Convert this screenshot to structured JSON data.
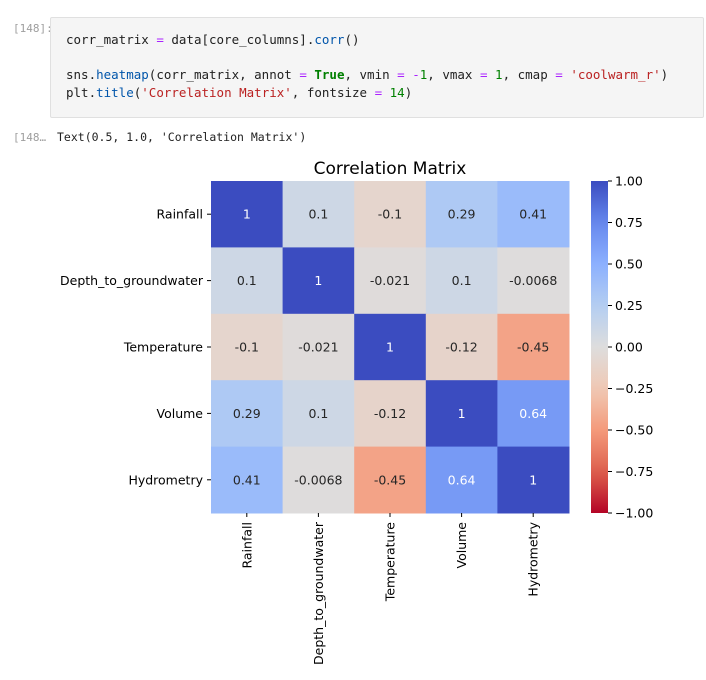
{
  "cells": {
    "input_prompt": "[148]:",
    "output_prompt": "[148…",
    "code_lines": [
      [
        {
          "t": "corr_matrix ",
          "c": ""
        },
        {
          "t": "=",
          "c": "op"
        },
        {
          "t": " data[core_columns].",
          "c": ""
        },
        {
          "t": "corr",
          "c": "fn"
        },
        {
          "t": "()",
          "c": ""
        }
      ],
      [
        {
          "t": "sns.",
          "c": ""
        },
        {
          "t": "heatmap",
          "c": "fn"
        },
        {
          "t": "(corr_matrix, annot ",
          "c": ""
        },
        {
          "t": "=",
          "c": "op"
        },
        {
          "t": " ",
          "c": ""
        },
        {
          "t": "True",
          "c": "kw"
        },
        {
          "t": ", vmin ",
          "c": ""
        },
        {
          "t": "=",
          "c": "op"
        },
        {
          "t": " ",
          "c": ""
        },
        {
          "t": "-",
          "c": "op"
        },
        {
          "t": "1",
          "c": "num"
        },
        {
          "t": ", vmax ",
          "c": ""
        },
        {
          "t": "=",
          "c": "op"
        },
        {
          "t": " ",
          "c": ""
        },
        {
          "t": "1",
          "c": "num"
        },
        {
          "t": ", cmap ",
          "c": ""
        },
        {
          "t": "=",
          "c": "op"
        },
        {
          "t": " ",
          "c": ""
        },
        {
          "t": "'coolwarm_r'",
          "c": "str"
        },
        {
          "t": ")",
          "c": ""
        }
      ],
      [
        {
          "t": "plt.",
          "c": ""
        },
        {
          "t": "title",
          "c": "fn"
        },
        {
          "t": "(",
          "c": ""
        },
        {
          "t": "'Correlation Matrix'",
          "c": "str"
        },
        {
          "t": ", fontsize ",
          "c": ""
        },
        {
          "t": "=",
          "c": "op"
        },
        {
          "t": " ",
          "c": ""
        },
        {
          "t": "14",
          "c": "num"
        },
        {
          "t": ")",
          "c": ""
        }
      ]
    ],
    "output_text": "Text(0.5, 1.0, 'Correlation Matrix')"
  },
  "chart_data": {
    "type": "heatmap",
    "title": "Correlation Matrix",
    "rows": [
      "Rainfall",
      "Depth_to_groundwater",
      "Temperature",
      "Volume",
      "Hydrometry"
    ],
    "cols": [
      "Rainfall",
      "Depth_to_groundwater",
      "Temperature",
      "Volume",
      "Hydrometry"
    ],
    "values": [
      [
        1,
        0.1,
        -0.1,
        0.29,
        0.41
      ],
      [
        0.1,
        1,
        -0.021,
        0.1,
        -0.0068
      ],
      [
        -0.1,
        -0.021,
        1,
        -0.12,
        -0.45
      ],
      [
        0.29,
        0.1,
        -0.12,
        1,
        0.64
      ],
      [
        0.41,
        -0.0068,
        -0.45,
        0.64,
        1
      ]
    ],
    "annotations": [
      [
        "1",
        "0.1",
        "-0.1",
        "0.29",
        "0.41"
      ],
      [
        "0.1",
        "1",
        "-0.021",
        "0.1",
        "-0.0068"
      ],
      [
        "-0.1",
        "-0.021",
        "1",
        "-0.12",
        "-0.45"
      ],
      [
        "0.29",
        "0.1",
        "-0.12",
        "1",
        "0.64"
      ],
      [
        "0.41",
        "-0.0068",
        "-0.45",
        "0.64",
        "1"
      ]
    ],
    "vmin": -1,
    "vmax": 1,
    "colormap": "coolwarm_r",
    "colorbar_ticks": [
      1.0,
      0.75,
      0.5,
      0.25,
      0.0,
      -0.25,
      -0.5,
      -0.75,
      -1.0
    ],
    "colorbar_labels": [
      "1.00",
      "0.75",
      "0.50",
      "0.25",
      "0.00",
      "−0.25",
      "−0.50",
      "−0.75",
      "−1.00"
    ]
  }
}
